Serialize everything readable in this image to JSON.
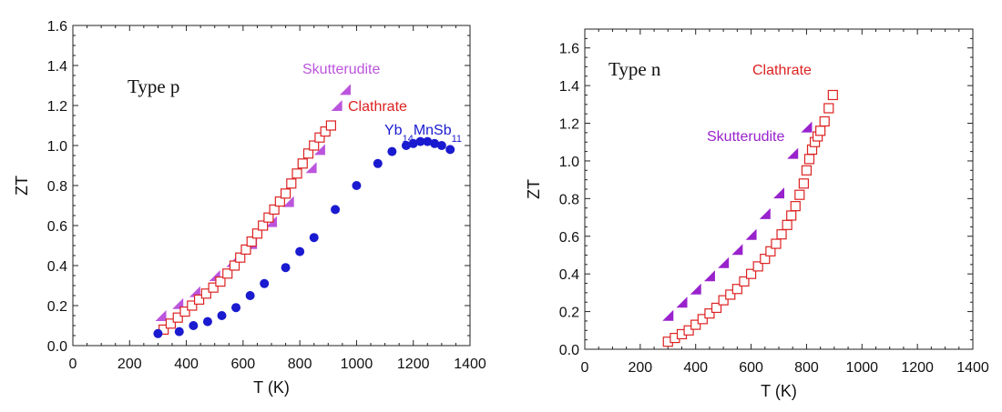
{
  "chart_data": [
    {
      "type": "scatter",
      "xlabel": "T (K)",
      "ylabel": "ZT",
      "xlim": [
        0,
        1400
      ],
      "ylim": [
        0,
        1.6
      ],
      "xticks": [
        0,
        200,
        400,
        600,
        800,
        1000,
        1200,
        1400
      ],
      "yticks": [
        0.0,
        0.2,
        0.4,
        0.6,
        0.8,
        1.0,
        1.2,
        1.4,
        1.6
      ],
      "ytick_labels": [
        "0.0",
        "0.2",
        "0.4",
        "0.6",
        "0.8",
        "1.0",
        "1.2",
        "1.4",
        "1.6"
      ],
      "grid": false,
      "annotations": [
        {
          "text": "Type p"
        }
      ],
      "series": [
        {
          "name": "Skutterudite",
          "marker": "triangle",
          "color": "#bb55dd",
          "label_parts": [
            "Skutterudite"
          ],
          "x": [
            310,
            370,
            430,
            500,
            560,
            630,
            700,
            760,
            840,
            870,
            930,
            960
          ],
          "y": [
            0.15,
            0.21,
            0.27,
            0.35,
            0.42,
            0.51,
            0.62,
            0.72,
            0.89,
            0.98,
            1.2,
            1.28
          ]
        },
        {
          "name": "Clathrate",
          "marker": "open-square",
          "color": "#dd2222",
          "label_parts": [
            "Clathrate"
          ],
          "x": [
            320,
            345,
            370,
            395,
            420,
            445,
            470,
            495,
            520,
            545,
            570,
            590,
            610,
            630,
            650,
            670,
            690,
            710,
            730,
            750,
            770,
            790,
            810,
            830,
            850,
            870,
            890,
            910
          ],
          "y": [
            0.08,
            0.11,
            0.14,
            0.17,
            0.2,
            0.23,
            0.26,
            0.29,
            0.32,
            0.36,
            0.4,
            0.44,
            0.48,
            0.52,
            0.56,
            0.6,
            0.64,
            0.68,
            0.72,
            0.76,
            0.81,
            0.86,
            0.91,
            0.96,
            1.0,
            1.04,
            1.07,
            1.1
          ]
        },
        {
          "name": "Yb14MnSb11",
          "marker": "filled-circle",
          "color": "#1a1ad0",
          "label_parts": [
            "Yb",
            "14",
            "MnSb",
            "11"
          ],
          "x": [
            300,
            375,
            425,
            475,
            525,
            575,
            625,
            675,
            750,
            800,
            850,
            925,
            1000,
            1075,
            1125,
            1175,
            1200,
            1225,
            1250,
            1275,
            1300,
            1330
          ],
          "y": [
            0.06,
            0.07,
            0.1,
            0.12,
            0.15,
            0.19,
            0.25,
            0.31,
            0.39,
            0.47,
            0.54,
            0.68,
            0.8,
            0.91,
            0.97,
            1.0,
            1.01,
            1.02,
            1.02,
            1.01,
            1.0,
            0.98
          ]
        }
      ]
    },
    {
      "type": "scatter",
      "xlabel": "T (K)",
      "ylabel": "ZT",
      "xlim": [
        0,
        1400
      ],
      "ylim": [
        0,
        1.7
      ],
      "xticks": [
        0,
        200,
        400,
        600,
        800,
        1000,
        1200,
        1400
      ],
      "yticks": [
        0.0,
        0.2,
        0.4,
        0.6,
        0.8,
        1.0,
        1.2,
        1.4,
        1.6
      ],
      "ytick_labels": [
        "0.0",
        "0.2",
        "0.4",
        "0.6",
        "0.8",
        "1.0",
        "1.2",
        "1.4",
        "1.6"
      ],
      "grid": false,
      "annotations": [
        {
          "text": "Type n"
        }
      ],
      "series": [
        {
          "name": "Skutterudite",
          "marker": "triangle",
          "color": "#9922cc",
          "label_parts": [
            "Skutterudite"
          ],
          "x": [
            300,
            350,
            400,
            450,
            500,
            550,
            600,
            650,
            700,
            750,
            800
          ],
          "y": [
            0.18,
            0.25,
            0.32,
            0.39,
            0.46,
            0.53,
            0.61,
            0.72,
            0.83,
            1.04,
            1.18
          ]
        },
        {
          "name": "Clathrate",
          "marker": "open-square",
          "color": "#dd2222",
          "label_parts": [
            "Clathrate"
          ],
          "x": [
            300,
            325,
            350,
            375,
            400,
            425,
            450,
            475,
            500,
            525,
            550,
            575,
            600,
            625,
            650,
            670,
            690,
            710,
            730,
            745,
            760,
            775,
            790,
            800,
            810,
            820,
            830,
            840,
            850,
            865,
            880,
            895
          ],
          "y": [
            0.04,
            0.06,
            0.08,
            0.1,
            0.13,
            0.16,
            0.19,
            0.22,
            0.26,
            0.29,
            0.32,
            0.36,
            0.4,
            0.44,
            0.48,
            0.52,
            0.56,
            0.61,
            0.66,
            0.71,
            0.76,
            0.82,
            0.88,
            0.95,
            1.01,
            1.06,
            1.1,
            1.13,
            1.16,
            1.21,
            1.28,
            1.35
          ]
        }
      ]
    }
  ]
}
